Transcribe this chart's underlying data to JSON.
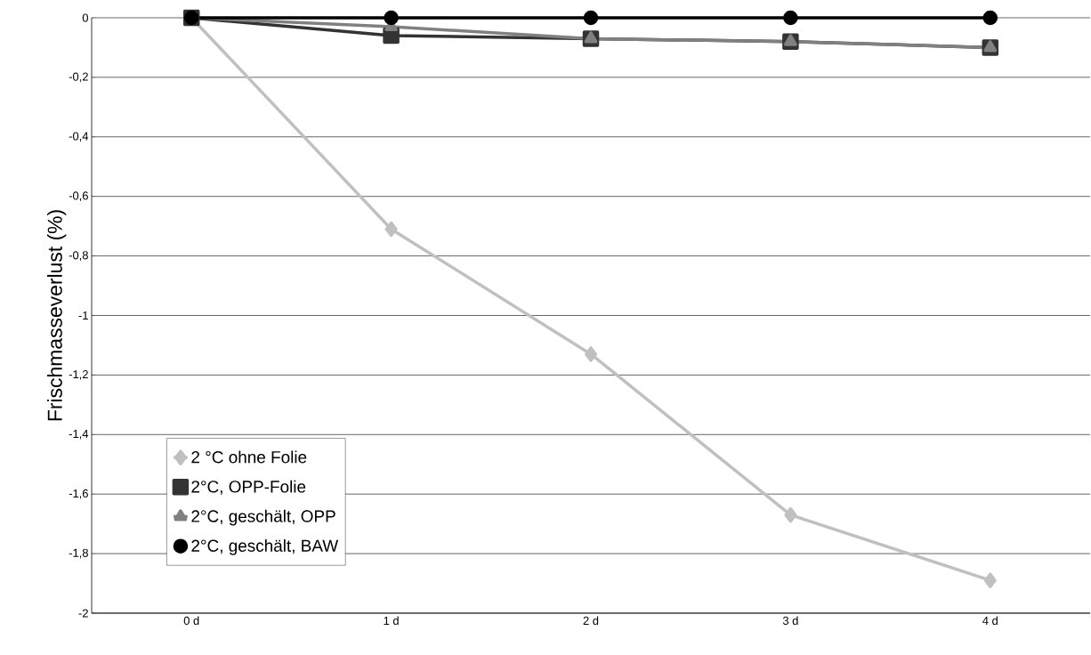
{
  "chart_data": {
    "type": "line",
    "ylabel": "Frischmasseverlust (%)",
    "categories": [
      "0 d",
      "1 d",
      "2 d",
      "3 d",
      "4 d"
    ],
    "series": [
      {
        "name": "2 °C ohne Folie",
        "color": "#c0c0c0",
        "marker": "diamond",
        "values": [
          0,
          -0.71,
          -1.13,
          -1.67,
          -1.89
        ]
      },
      {
        "name": "2°C, OPP-Folie",
        "color": "#333333",
        "marker": "square",
        "values": [
          0,
          -0.06,
          -0.07,
          -0.08,
          -0.1
        ]
      },
      {
        "name": "2°C, geschält, OPP",
        "color": "#808080",
        "marker": "triangle",
        "values": [
          0,
          -0.03,
          -0.07,
          -0.08,
          -0.1
        ]
      },
      {
        "name": "2°C, geschält, BAW",
        "color": "#000000",
        "marker": "circle",
        "values": [
          0,
          0,
          0,
          0,
          0
        ]
      }
    ],
    "ylim": [
      -2,
      0
    ],
    "yticks": [
      {
        "value": -2,
        "label": "-2"
      },
      {
        "value": -1.8,
        "label": "-1,8"
      },
      {
        "value": -1.6,
        "label": "-1,6"
      },
      {
        "value": -1.4,
        "label": "-1,4"
      },
      {
        "value": -1.2,
        "label": "-1,2"
      },
      {
        "value": -1,
        "label": "-1"
      },
      {
        "value": -0.8,
        "label": "-0,8"
      },
      {
        "value": -0.6,
        "label": "-0,6"
      },
      {
        "value": -0.4,
        "label": "-0,4"
      },
      {
        "value": -0.2,
        "label": "-0,2"
      },
      {
        "value": 0,
        "label": "0"
      }
    ],
    "grid": "y",
    "legend": "bottom left",
    "line_style": "solid"
  }
}
